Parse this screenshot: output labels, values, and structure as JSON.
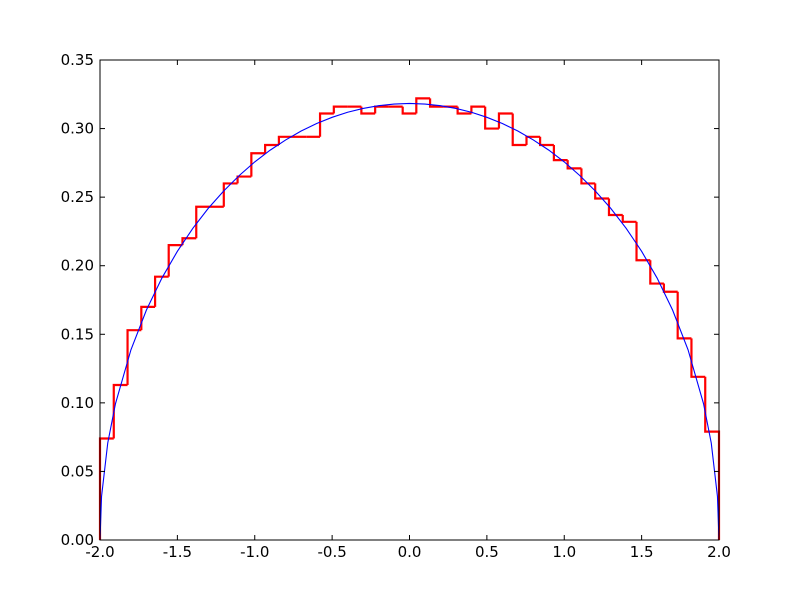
{
  "chart_data": {
    "type": "histogram",
    "xlim": [
      -2,
      2
    ],
    "ylim": [
      0,
      0.35
    ],
    "xticks": [
      {
        "value": -2,
        "label": "-2.0"
      },
      {
        "value": -1.5,
        "label": "-1.5"
      },
      {
        "value": -1,
        "label": "-1.0"
      },
      {
        "value": -0.5,
        "label": "-0.5"
      },
      {
        "value": 0,
        "label": "0.0"
      },
      {
        "value": 0.5,
        "label": "0.5"
      },
      {
        "value": 1,
        "label": "1.0"
      },
      {
        "value": 1.5,
        "label": "1.5"
      },
      {
        "value": 2,
        "label": "2.0"
      }
    ],
    "yticks": [
      {
        "value": 0,
        "label": "0.00"
      },
      {
        "value": 0.05,
        "label": "0.05"
      },
      {
        "value": 0.1,
        "label": "0.10"
      },
      {
        "value": 0.15,
        "label": "0.15"
      },
      {
        "value": 0.2,
        "label": "0.20"
      },
      {
        "value": 0.25,
        "label": "0.25"
      },
      {
        "value": 0.3,
        "label": "0.30"
      },
      {
        "value": 0.35,
        "label": "0.35"
      }
    ],
    "series": [
      {
        "type": "histogram",
        "color": "#ff0000",
        "bins": [
          -2,
          -1.911,
          -1.822,
          -1.733,
          -1.644,
          -1.556,
          -1.467,
          -1.378,
          -1.289,
          -1.2,
          -1.111,
          -1.022,
          -0.933,
          -0.844,
          -0.756,
          -0.667,
          -0.578,
          -0.489,
          -0.4,
          -0.311,
          -0.222,
          -0.133,
          -0.044,
          0.044,
          0.133,
          0.222,
          0.311,
          0.4,
          0.489,
          0.578,
          0.667,
          0.756,
          0.844,
          0.933,
          1.022,
          1.111,
          1.2,
          1.289,
          1.378,
          1.467,
          1.556,
          1.644,
          1.733,
          1.822,
          1.911,
          2
        ],
        "values": [
          0.074,
          0.113,
          0.153,
          0.17,
          0.192,
          0.215,
          0.22,
          0.243,
          0.243,
          0.26,
          0.265,
          0.282,
          0.288,
          0.294,
          0.294,
          0.294,
          0.311,
          0.316,
          0.316,
          0.311,
          0.316,
          0.316,
          0.311,
          0.322,
          0.316,
          0.316,
          0.311,
          0.316,
          0.3,
          0.311,
          0.288,
          0.294,
          0.288,
          0.277,
          0.271,
          0.26,
          0.249,
          0.237,
          0.232,
          0.204,
          0.187,
          0.181,
          0.147,
          0.119,
          0.079
        ]
      },
      {
        "type": "line",
        "color": "#0000ff",
        "x": [
          -2,
          -1.99,
          -1.95,
          -1.9,
          -1.8,
          -1.7,
          -1.6,
          -1.5,
          -1.4,
          -1.3,
          -1.2,
          -1.1,
          -1.0,
          -0.9,
          -0.8,
          -0.7,
          -0.6,
          -0.5,
          -0.4,
          -0.3,
          -0.2,
          -0.1,
          0,
          0.1,
          0.2,
          0.3,
          0.4,
          0.5,
          0.6,
          0.7,
          0.8,
          0.9,
          1.0,
          1.1,
          1.2,
          1.3,
          1.4,
          1.5,
          1.6,
          1.7,
          1.8,
          1.9,
          1.95,
          1.99,
          2
        ],
        "values": [
          0,
          0.0318,
          0.0707,
          0.0994,
          0.1387,
          0.1677,
          0.191,
          0.2105,
          0.2273,
          0.2419,
          0.2546,
          0.2658,
          0.2757,
          0.2843,
          0.2917,
          0.2982,
          0.3037,
          0.3082,
          0.3119,
          0.3147,
          0.3167,
          0.3179,
          0.3183,
          0.3179,
          0.3167,
          0.3147,
          0.3119,
          0.3082,
          0.3037,
          0.2982,
          0.2917,
          0.2843,
          0.2757,
          0.2658,
          0.2546,
          0.2419,
          0.2273,
          0.2105,
          0.191,
          0.1677,
          0.1387,
          0.0994,
          0.0707,
          0.0318,
          0
        ]
      }
    ]
  }
}
